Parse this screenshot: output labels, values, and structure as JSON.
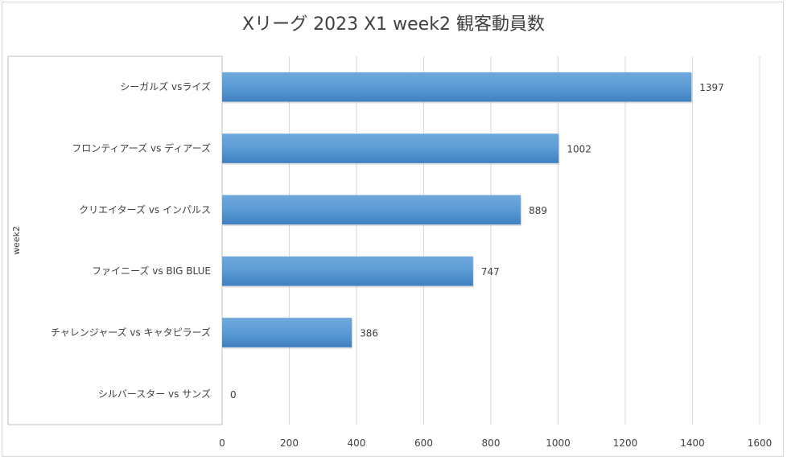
{
  "chart_data": {
    "type": "bar",
    "orientation": "horizontal",
    "title": "Xリーグ 2023 X1 week2 観客動員数",
    "group_label": "week2",
    "categories": [
      "シーガルズ vsライズ",
      "フロンティアーズ vs ディアーズ",
      "クリエイターズ vs インパルス",
      "ファイニーズ vs BIG BLUE",
      "チャレンジャーズ vs キャタピラーズ",
      "シルバースター vs サンズ"
    ],
    "values": [
      1397,
      1002,
      889,
      747,
      386,
      0
    ],
    "value_labels": [
      "1397",
      "1002",
      "889",
      "747",
      "386",
      "0"
    ],
    "xlim": [
      0,
      1600
    ],
    "xticks": [
      "0",
      "200",
      "400",
      "600",
      "800",
      "1000",
      "1200",
      "1400",
      "1600"
    ],
    "grid": true,
    "bar_color": "#5b9bd5"
  }
}
